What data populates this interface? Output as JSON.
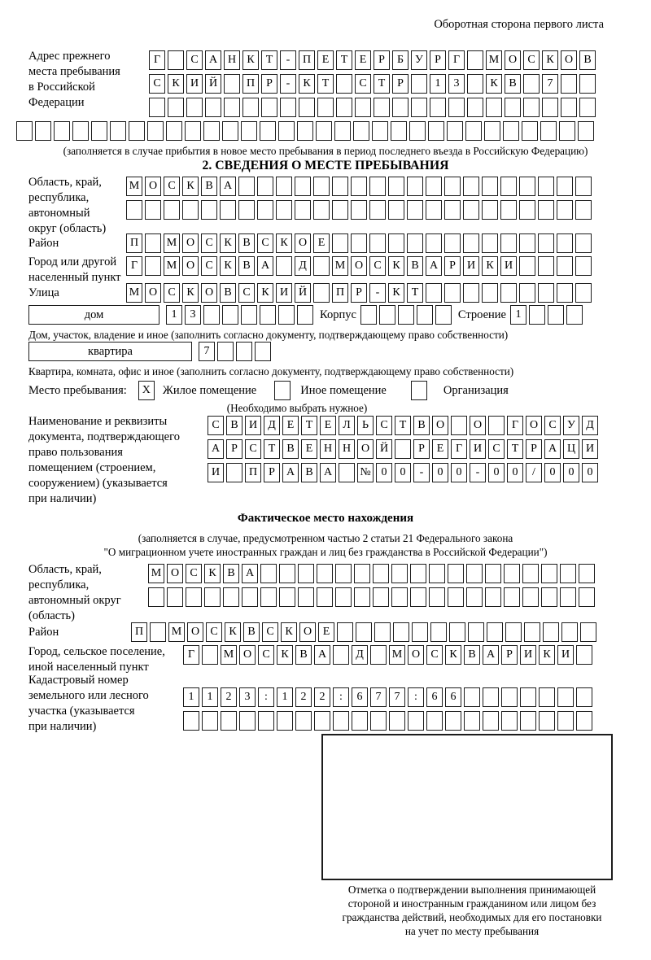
{
  "header": {
    "note": "Оборотная сторона первого листа"
  },
  "prev_address": {
    "label_lines": [
      "Адрес прежнего",
      "места пребывания",
      "в Российской",
      "Федерации"
    ],
    "rows": [
      {
        "text": "Г САНКТ-ПЕТЕРБУРГ МОСКОВ",
        "len": 24
      },
      {
        "text": "СКИЙ ПР-КТ СТР 13 КВ 7",
        "len": 24
      },
      {
        "text": "",
        "len": 24
      },
      {
        "text": "",
        "len": 31
      }
    ],
    "note": "(заполняется в случае прибытия в новое место пребывания в период последнего въезда в Российскую Федерацию)"
  },
  "section2": {
    "title": "2. СВЕДЕНИЯ О МЕСТЕ ПРЕБЫВАНИЯ",
    "oblast": {
      "label_lines": [
        "Область, край,",
        "республика,",
        "автономный",
        "округ (область)"
      ],
      "rows": [
        {
          "text": "МОСКВА",
          "len": 25
        },
        {
          "text": "",
          "len": 25
        }
      ]
    },
    "raion": {
      "label": "Район",
      "row": {
        "text": "П МОСКВСКОЕ",
        "len": 25
      }
    },
    "gorod": {
      "label_lines": [
        "Город или другой",
        "населенный пункт"
      ],
      "row": {
        "text": "Г МОСКВА Д МОСКВАРИКИ",
        "len": 25
      }
    },
    "ulitsa": {
      "label": "Улица",
      "row": {
        "text": "МОСКОВСКИЙ ПР-КТ",
        "len": 25
      }
    },
    "dom": {
      "box_label": "дом",
      "cells": {
        "text": "13",
        "len": 8
      },
      "korpus_label": "Корпус",
      "korpus_cells": {
        "text": "",
        "len": 5
      },
      "stroenie_label": "Строение",
      "stroenie_cells": {
        "text": "1",
        "len": 4
      },
      "note": "Дом, участок, владение и иное (заполнить согласно документу, подтверждающему право собственности)"
    },
    "kvartira": {
      "box_label": "квартира",
      "cells": {
        "text": "7",
        "len": 4
      },
      "note": "Квартира, комната, офис и иное (заполнить согласно документу, подтверждающему право собственности)"
    },
    "mesto": {
      "label": "Место пребывания:",
      "options": [
        {
          "label": "Жилое помещение",
          "mark": "X"
        },
        {
          "label": "Иное помещение",
          "mark": ""
        },
        {
          "label": "Организация",
          "mark": ""
        }
      ],
      "note": "(Необходимо выбрать нужное)"
    },
    "doc": {
      "label_lines": [
        "Наименование и реквизиты",
        "документа, подтверждающего",
        "право пользования",
        "помещением (строением,",
        "сооружением) (указывается",
        "при наличии)"
      ],
      "rows": [
        {
          "text": "СВИДЕТЕЛЬСТВО О ГОСУД",
          "len": 21
        },
        {
          "text": "АРСТВЕННОЙ РЕГИСТРАЦИ",
          "len": 21
        },
        {
          "text": "И ПРАВА №00-00-00/000",
          "len": 21
        }
      ]
    }
  },
  "fact": {
    "title": "Фактическое место нахождения",
    "note_lines": [
      "(заполняется в случае, предусмотренном частью 2 статьи 21 Федерального закона",
      "\"О миграционном учете иностранных граждан и лиц без гражданства в Российской Федерации\")"
    ],
    "oblast": {
      "label_lines": [
        "Область, край,",
        "республика,",
        "автономный округ",
        "(область)"
      ],
      "rows": [
        {
          "text": "МОСКВА",
          "len": 24
        },
        {
          "text": "",
          "len": 24
        }
      ]
    },
    "raion": {
      "label": "Район",
      "row": {
        "text": "П МОСКВСКОЕ",
        "len": 25
      }
    },
    "gorod": {
      "label_lines": [
        "Город, сельское поселение,",
        "иной населенный пункт"
      ],
      "row": {
        "text": "Г МОСКВА Д МОСКВАРИКИ",
        "len": 22
      }
    },
    "kadastr": {
      "label_lines": [
        "Кадастровый номер",
        "земельного или лесного",
        "участка (указывается",
        "при наличии)"
      ],
      "rows": [
        {
          "text": "1123:122:677:66",
          "len": 22
        },
        {
          "text": "",
          "len": 22
        }
      ]
    },
    "stamp_note_lines": [
      "Отметка о подтверждении выполнения принимающей",
      "стороной и иностранным гражданином или лицом без",
      "гражданства действий, необходимых для его постановки",
      "на учет по месту пребывания"
    ]
  }
}
